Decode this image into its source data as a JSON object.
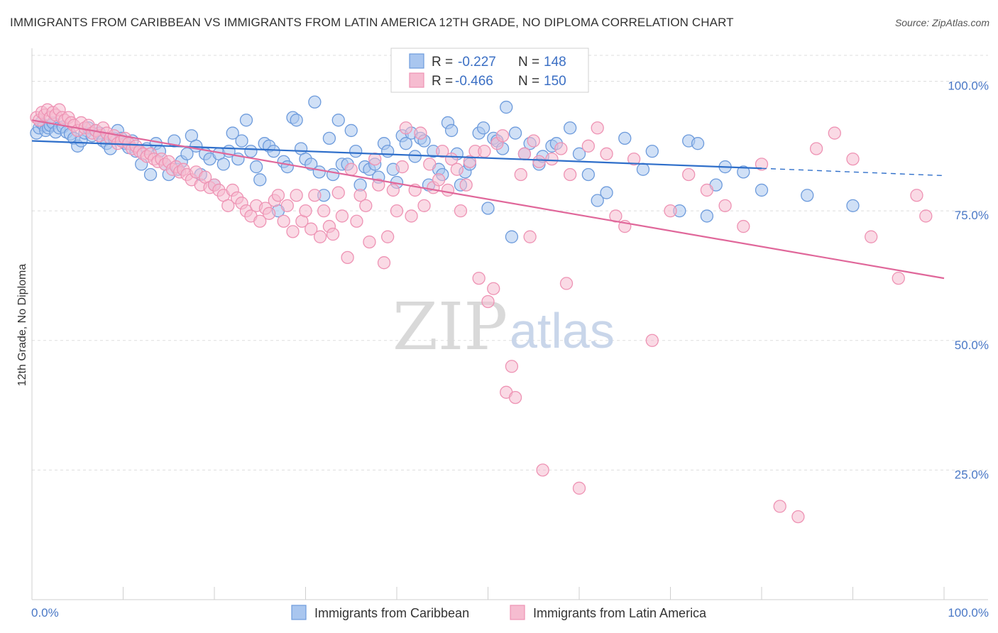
{
  "header": {
    "title": "IMMIGRANTS FROM CARIBBEAN VS IMMIGRANTS FROM LATIN AMERICA 12TH GRADE, NO DIPLOMA CORRELATION CHART",
    "source": "Source: ZipAtlas.com"
  },
  "watermark": {
    "zip": "ZIP",
    "atlas": "atlas"
  },
  "colors": {
    "caribbean_fill": "#a9c6ef",
    "caribbean_stroke": "#6d9bdc",
    "caribbean_line": "#2f6fca",
    "latin_fill": "#f6bcd0",
    "latin_stroke": "#ee93b4",
    "latin_line": "#e0679a",
    "grid": "#dddddd",
    "tick_text": "#4a78c6"
  },
  "legend": {
    "rows": [
      {
        "r_label": "R =",
        "r_value": "-0.227",
        "n_label": "N =",
        "n_value": "148"
      },
      {
        "r_label": "R =",
        "r_value": "-0.466",
        "n_label": "N =",
        "n_value": "150"
      }
    ]
  },
  "chart_data": {
    "type": "scatter",
    "title": "IMMIGRANTS FROM CARIBBEAN VS IMMIGRANTS FROM LATIN AMERICA 12TH GRADE, NO DIPLOMA CORRELATION CHART",
    "xlabel": "",
    "ylabel": "12th Grade, No Diploma",
    "xlim": [
      0,
      100
    ],
    "ylim": [
      0,
      105
    ],
    "x_tick_labels": [
      "0.0%",
      "100.0%"
    ],
    "y_ticks": [
      {
        "value": 25,
        "label": "25.0%"
      },
      {
        "value": 50,
        "label": "50.0%"
      },
      {
        "value": 75,
        "label": "75.0%"
      },
      {
        "value": 100,
        "label": "100.0%"
      }
    ],
    "grid": true,
    "legend_position": "top-center",
    "series": [
      {
        "name": "Immigrants from Caribbean",
        "color": "#6d9bdc",
        "r": -0.227,
        "n": 148,
        "trend": {
          "x0": 0,
          "y0": 88.5,
          "x1": 80,
          "y1": 83.2,
          "x_dash_end": 100,
          "y_dash_end": 81.8
        },
        "points": [
          [
            0.5,
            90
          ],
          [
            0.8,
            91
          ],
          [
            1,
            92
          ],
          [
            1.3,
            91.5
          ],
          [
            1.5,
            90.5
          ],
          [
            1.8,
            91
          ],
          [
            2,
            91.5
          ],
          [
            2.3,
            92
          ],
          [
            2.6,
            90.2
          ],
          [
            3,
            91
          ],
          [
            3.4,
            91.2
          ],
          [
            3.8,
            90.2
          ],
          [
            4.2,
            89.8
          ],
          [
            4.6,
            89
          ],
          [
            5,
            87.5
          ],
          [
            5.4,
            88.5
          ],
          [
            5.8,
            90
          ],
          [
            6.2,
            91
          ],
          [
            6.6,
            89.5
          ],
          [
            7,
            90.5
          ],
          [
            7.4,
            90
          ],
          [
            7.8,
            88.5
          ],
          [
            8.2,
            88
          ],
          [
            8.6,
            87
          ],
          [
            9,
            89
          ],
          [
            9.4,
            90.5
          ],
          [
            9.8,
            89
          ],
          [
            10.2,
            88
          ],
          [
            10.6,
            87.2
          ],
          [
            11,
            88.5
          ],
          [
            11.4,
            86.5
          ],
          [
            12,
            84
          ],
          [
            12.6,
            87
          ],
          [
            13,
            82
          ],
          [
            13.6,
            88
          ],
          [
            14,
            86.5
          ],
          [
            14.6,
            84
          ],
          [
            15,
            82
          ],
          [
            15.6,
            88.5
          ],
          [
            16,
            83
          ],
          [
            16.4,
            84.5
          ],
          [
            17,
            86
          ],
          [
            17.5,
            89.5
          ],
          [
            18,
            87.5
          ],
          [
            18.5,
            82
          ],
          [
            19,
            86
          ],
          [
            19.5,
            85
          ],
          [
            20,
            80
          ],
          [
            20.5,
            86
          ],
          [
            21,
            84
          ],
          [
            21.6,
            86.5
          ],
          [
            22,
            90
          ],
          [
            22.6,
            85
          ],
          [
            23,
            88.5
          ],
          [
            23.5,
            92.5
          ],
          [
            24,
            86.5
          ],
          [
            24.6,
            83.5
          ],
          [
            25,
            81
          ],
          [
            25.5,
            88
          ],
          [
            26,
            87.5
          ],
          [
            26.5,
            86.5
          ],
          [
            27,
            75
          ],
          [
            27.6,
            84.5
          ],
          [
            28,
            83.5
          ],
          [
            28.6,
            93
          ],
          [
            29,
            92.5
          ],
          [
            29.5,
            87
          ],
          [
            30,
            85
          ],
          [
            30.6,
            84
          ],
          [
            31,
            96
          ],
          [
            31.5,
            82.5
          ],
          [
            32,
            78
          ],
          [
            32.6,
            89
          ],
          [
            33,
            82
          ],
          [
            33.6,
            92.5
          ],
          [
            34,
            84
          ],
          [
            34.6,
            84
          ],
          [
            35,
            90.5
          ],
          [
            35.5,
            86.5
          ],
          [
            36,
            80
          ],
          [
            36.5,
            83.5
          ],
          [
            37,
            83
          ],
          [
            37.6,
            84
          ],
          [
            38,
            81.5
          ],
          [
            38.6,
            88
          ],
          [
            39,
            86.5
          ],
          [
            39.6,
            83
          ],
          [
            40,
            80.5
          ],
          [
            40.6,
            89.5
          ],
          [
            41,
            88
          ],
          [
            41.6,
            90
          ],
          [
            42,
            85.5
          ],
          [
            42.6,
            89
          ],
          [
            43,
            88.5
          ],
          [
            43.5,
            80
          ],
          [
            44,
            86.5
          ],
          [
            44.6,
            83
          ],
          [
            45,
            82
          ],
          [
            45.6,
            92
          ],
          [
            46,
            90.5
          ],
          [
            46.6,
            86
          ],
          [
            47,
            80
          ],
          [
            47.5,
            82.5
          ],
          [
            48,
            84
          ],
          [
            49,
            90
          ],
          [
            49.5,
            91
          ],
          [
            50,
            75.5
          ],
          [
            50.6,
            89
          ],
          [
            51,
            88.5
          ],
          [
            51.6,
            87
          ],
          [
            52,
            95
          ],
          [
            52.6,
            70
          ],
          [
            53,
            90
          ],
          [
            54,
            86
          ],
          [
            54.6,
            88
          ],
          [
            55,
            100
          ],
          [
            55.6,
            84
          ],
          [
            56,
            85.5
          ],
          [
            57,
            87.5
          ],
          [
            57.5,
            88
          ],
          [
            59,
            91
          ],
          [
            60,
            86
          ],
          [
            61,
            82
          ],
          [
            62,
            77
          ],
          [
            63,
            78.5
          ],
          [
            65,
            89
          ],
          [
            67,
            83
          ],
          [
            68,
            86.5
          ],
          [
            71,
            75
          ],
          [
            72,
            88.5
          ],
          [
            73,
            88
          ],
          [
            74,
            74
          ],
          [
            75,
            80
          ],
          [
            76,
            83.5
          ],
          [
            78,
            82.5
          ],
          [
            80,
            79
          ],
          [
            85,
            78
          ],
          [
            90,
            76
          ]
        ]
      },
      {
        "name": "Immigrants from Latin America",
        "color": "#ee93b4",
        "r": -0.466,
        "n": 150,
        "trend": {
          "x0": 0,
          "y0": 92.5,
          "x1": 100,
          "y1": 62.0
        },
        "points": [
          [
            0.5,
            93
          ],
          [
            0.8,
            92.5
          ],
          [
            1.1,
            94
          ],
          [
            1.4,
            93.5
          ],
          [
            1.7,
            94.5
          ],
          [
            2,
            93
          ],
          [
            2.3,
            94
          ],
          [
            2.6,
            93.5
          ],
          [
            3,
            94.5
          ],
          [
            3.3,
            93
          ],
          [
            3.6,
            92.5
          ],
          [
            4,
            93
          ],
          [
            4.3,
            92
          ],
          [
            4.6,
            91.5
          ],
          [
            5,
            90.5
          ],
          [
            5.4,
            92
          ],
          [
            5.8,
            91
          ],
          [
            6.2,
            91.5
          ],
          [
            6.6,
            90
          ],
          [
            7,
            90.5
          ],
          [
            7.4,
            89.5
          ],
          [
            7.8,
            91
          ],
          [
            8.2,
            90
          ],
          [
            8.6,
            89
          ],
          [
            9,
            89.5
          ],
          [
            9.4,
            88
          ],
          [
            9.8,
            88.5
          ],
          [
            10.2,
            89
          ],
          [
            10.6,
            88
          ],
          [
            11,
            87
          ],
          [
            11.4,
            87.5
          ],
          [
            11.8,
            86.5
          ],
          [
            12.2,
            86
          ],
          [
            12.6,
            85.5
          ],
          [
            13,
            86
          ],
          [
            13.4,
            85
          ],
          [
            13.8,
            84.5
          ],
          [
            14.2,
            85
          ],
          [
            14.6,
            84
          ],
          [
            15,
            84.5
          ],
          [
            15.4,
            83
          ],
          [
            15.8,
            83.5
          ],
          [
            16.2,
            82.5
          ],
          [
            16.6,
            83
          ],
          [
            17,
            82
          ],
          [
            17.5,
            81
          ],
          [
            18,
            82.5
          ],
          [
            18.5,
            80
          ],
          [
            19,
            81.5
          ],
          [
            19.5,
            79.5
          ],
          [
            20,
            80
          ],
          [
            20.5,
            79
          ],
          [
            21,
            78
          ],
          [
            21.5,
            76
          ],
          [
            22,
            79
          ],
          [
            22.5,
            77.5
          ],
          [
            23,
            76.5
          ],
          [
            23.5,
            75
          ],
          [
            24,
            74
          ],
          [
            24.6,
            76
          ],
          [
            25,
            73
          ],
          [
            25.6,
            75.5
          ],
          [
            26,
            74.5
          ],
          [
            26.6,
            77
          ],
          [
            27,
            78
          ],
          [
            27.6,
            73
          ],
          [
            28,
            76
          ],
          [
            28.6,
            71
          ],
          [
            29,
            78
          ],
          [
            29.6,
            73
          ],
          [
            30,
            75
          ],
          [
            30.6,
            71.5
          ],
          [
            31,
            78
          ],
          [
            31.6,
            70
          ],
          [
            32,
            75
          ],
          [
            32.6,
            72
          ],
          [
            33,
            70.5
          ],
          [
            33.6,
            78.5
          ],
          [
            34,
            74
          ],
          [
            34.6,
            66
          ],
          [
            35,
            83
          ],
          [
            35.6,
            73
          ],
          [
            36,
            78
          ],
          [
            36.6,
            76
          ],
          [
            37,
            69
          ],
          [
            37.6,
            85
          ],
          [
            38,
            80
          ],
          [
            38.6,
            65
          ],
          [
            39,
            70
          ],
          [
            39.6,
            79
          ],
          [
            40,
            75
          ],
          [
            40.6,
            83.5
          ],
          [
            41,
            91
          ],
          [
            41.6,
            74
          ],
          [
            42,
            79
          ],
          [
            42.6,
            90
          ],
          [
            43,
            76
          ],
          [
            43.6,
            84
          ],
          [
            44,
            79.5
          ],
          [
            44.6,
            81
          ],
          [
            45,
            86.5
          ],
          [
            45.6,
            79
          ],
          [
            46,
            85
          ],
          [
            46.6,
            83
          ],
          [
            47,
            75
          ],
          [
            47.6,
            80
          ],
          [
            48,
            84.5
          ],
          [
            48.6,
            86.5
          ],
          [
            49,
            62
          ],
          [
            49.6,
            86.5
          ],
          [
            50,
            57.5
          ],
          [
            50.6,
            60
          ],
          [
            51,
            88
          ],
          [
            51.6,
            89.5
          ],
          [
            52,
            40
          ],
          [
            52.6,
            45
          ],
          [
            53,
            39
          ],
          [
            53.6,
            82
          ],
          [
            54,
            86
          ],
          [
            54.6,
            70
          ],
          [
            55,
            88.5
          ],
          [
            55.6,
            84.5
          ],
          [
            56,
            25
          ],
          [
            57,
            85
          ],
          [
            58,
            87
          ],
          [
            58.6,
            61
          ],
          [
            59,
            82
          ],
          [
            60,
            21.5
          ],
          [
            61,
            87.5
          ],
          [
            62,
            91
          ],
          [
            63,
            86
          ],
          [
            64,
            74
          ],
          [
            65,
            72
          ],
          [
            66,
            85
          ],
          [
            68,
            50
          ],
          [
            70,
            75
          ],
          [
            72,
            82
          ],
          [
            74,
            79
          ],
          [
            76,
            76
          ],
          [
            78,
            72
          ],
          [
            80,
            84
          ],
          [
            82,
            18
          ],
          [
            84,
            16
          ],
          [
            86,
            87
          ],
          [
            88,
            90
          ],
          [
            90,
            85
          ],
          [
            92,
            70
          ],
          [
            95,
            62
          ],
          [
            97,
            78
          ],
          [
            98,
            74
          ]
        ]
      }
    ]
  },
  "bottom_legend": {
    "items": [
      {
        "label": "Immigrants from Caribbean"
      },
      {
        "label": "Immigrants from Latin America"
      }
    ]
  }
}
